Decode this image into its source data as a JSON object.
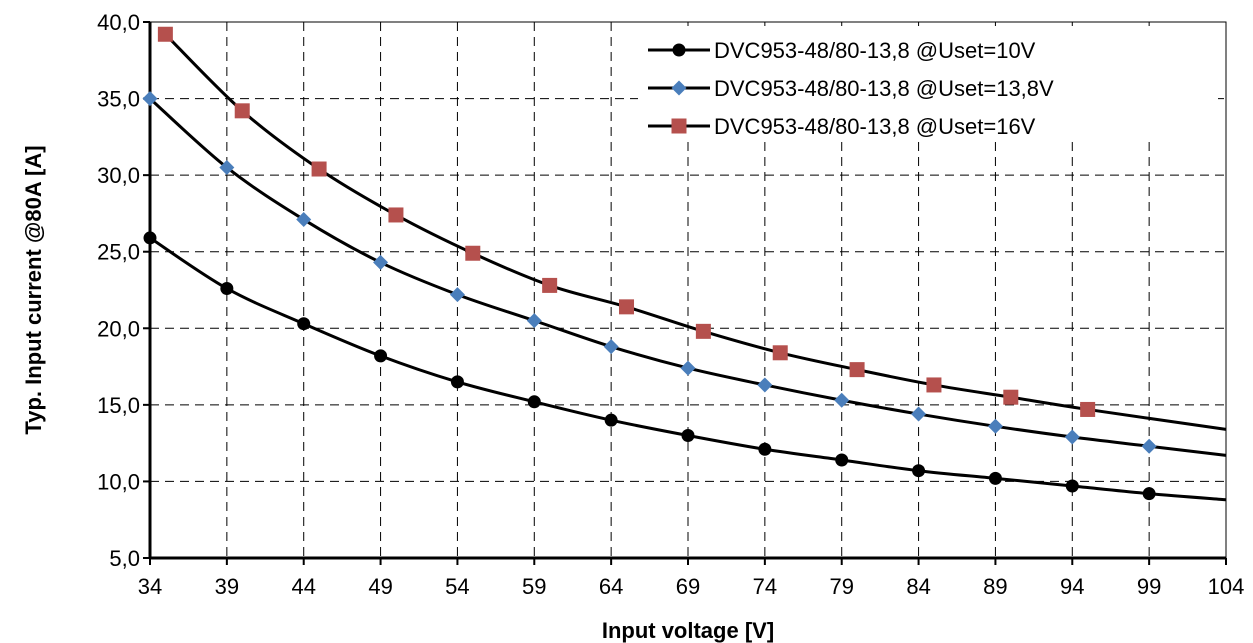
{
  "chart_data": {
    "type": "line",
    "title": "",
    "xlabel": "Input voltage [V]",
    "ylabel": "Typ.  Input current @80A  [A]",
    "xlim": [
      34,
      104
    ],
    "ylim": [
      5,
      40
    ],
    "x_ticks": [
      "34",
      "39",
      "44",
      "49",
      "54",
      "59",
      "64",
      "69",
      "74",
      "79",
      "84",
      "89",
      "94",
      "99",
      "104"
    ],
    "y_ticks": [
      "5,0",
      "10,0",
      "15,0",
      "20,0",
      "25,0",
      "30,0",
      "35,0",
      "40,0"
    ],
    "grid": true,
    "legend_position": "top-right",
    "series": [
      {
        "name": "DVC953-48/80-13,8 @Uset=10V",
        "color": "#000000",
        "marker": "circle",
        "points": [
          [
            34,
            25.9
          ],
          [
            39,
            22.6
          ],
          [
            44,
            20.3
          ],
          [
            49,
            18.2
          ],
          [
            54,
            16.5
          ],
          [
            59,
            15.2
          ],
          [
            64,
            14.0
          ],
          [
            69,
            13.0
          ],
          [
            74,
            12.1
          ],
          [
            79,
            11.4
          ],
          [
            84,
            10.7
          ],
          [
            89,
            10.2
          ],
          [
            94,
            9.7
          ],
          [
            99,
            9.2
          ]
        ],
        "curve": [
          [
            34,
            25.9
          ],
          [
            39,
            22.6
          ],
          [
            44,
            20.3
          ],
          [
            49,
            18.2
          ],
          [
            54,
            16.5
          ],
          [
            59,
            15.2
          ],
          [
            64,
            14.0
          ],
          [
            69,
            13.0
          ],
          [
            74,
            12.1
          ],
          [
            79,
            11.4
          ],
          [
            84,
            10.7
          ],
          [
            89,
            10.2
          ],
          [
            94,
            9.7
          ],
          [
            99,
            9.2
          ],
          [
            104,
            8.8
          ]
        ]
      },
      {
        "name": "DVC953-48/80-13,8 @Uset=13,8V",
        "color": "#4a7ebb",
        "marker": "diamond",
        "points": [
          [
            34,
            35.0
          ],
          [
            39,
            30.5
          ],
          [
            44,
            27.1
          ],
          [
            49,
            24.3
          ],
          [
            54,
            22.2
          ],
          [
            59,
            20.5
          ],
          [
            64,
            18.8
          ],
          [
            69,
            17.4
          ],
          [
            74,
            16.3
          ],
          [
            79,
            15.3
          ],
          [
            84,
            14.4
          ],
          [
            89,
            13.6
          ],
          [
            94,
            12.9
          ],
          [
            99,
            12.3
          ]
        ],
        "curve": [
          [
            34,
            35.0
          ],
          [
            39,
            30.5
          ],
          [
            44,
            27.1
          ],
          [
            49,
            24.3
          ],
          [
            54,
            22.2
          ],
          [
            59,
            20.5
          ],
          [
            64,
            18.8
          ],
          [
            69,
            17.4
          ],
          [
            74,
            16.3
          ],
          [
            79,
            15.3
          ],
          [
            84,
            14.4
          ],
          [
            89,
            13.6
          ],
          [
            94,
            12.9
          ],
          [
            99,
            12.3
          ],
          [
            104,
            11.7
          ]
        ]
      },
      {
        "name": "DVC953-48/80-13,8 @Uset=16V",
        "color": "#b5504d",
        "marker": "square",
        "points": [
          [
            35,
            39.2
          ],
          [
            40,
            34.2
          ],
          [
            45,
            30.4
          ],
          [
            50,
            27.4
          ],
          [
            55,
            24.9
          ],
          [
            60,
            22.8
          ],
          [
            65,
            21.4
          ],
          [
            70,
            19.8
          ],
          [
            75,
            18.4
          ],
          [
            80,
            17.3
          ],
          [
            85,
            16.3
          ],
          [
            90,
            15.5
          ],
          [
            95,
            14.7
          ]
        ],
        "curve": [
          [
            35,
            39.2
          ],
          [
            40,
            34.2
          ],
          [
            45,
            30.4
          ],
          [
            50,
            27.4
          ],
          [
            55,
            24.9
          ],
          [
            60,
            22.8
          ],
          [
            65,
            21.4
          ],
          [
            70,
            19.8
          ],
          [
            75,
            18.4
          ],
          [
            80,
            17.3
          ],
          [
            85,
            16.3
          ],
          [
            90,
            15.5
          ],
          [
            95,
            14.7
          ],
          [
            104,
            13.4
          ]
        ]
      }
    ]
  }
}
